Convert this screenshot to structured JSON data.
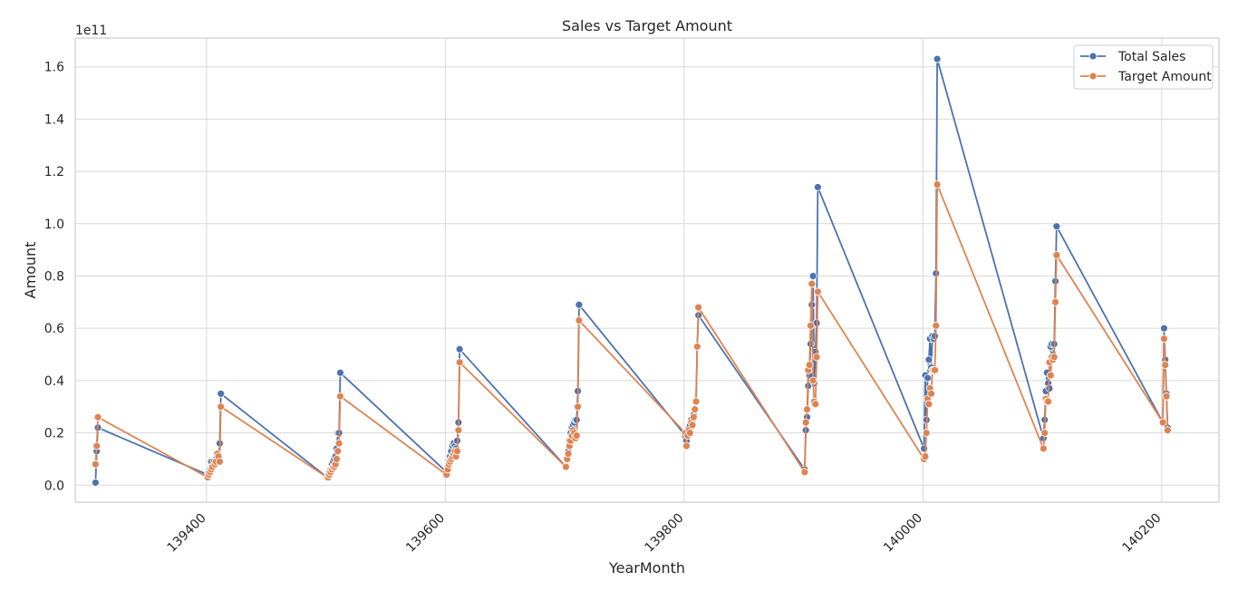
{
  "chart_data": {
    "type": "line",
    "title": "Sales vs Target Amount",
    "xlabel": "YearMonth",
    "ylabel": "Amount",
    "y_scale_label": "1e11",
    "y_multiplier": 100000000000,
    "xlim": [
      139290,
      140248
    ],
    "ylim": [
      -0.065,
      1.71
    ],
    "x_ticks": [
      139400,
      139600,
      139800,
      140000,
      140200
    ],
    "x_tick_labels": [
      "139400",
      "139600",
      "139800",
      "140000",
      "140200"
    ],
    "y_ticks": [
      0.0,
      0.2,
      0.4,
      0.6,
      0.8,
      1.0,
      1.2,
      1.4,
      1.6
    ],
    "y_tick_labels": [
      "0.0",
      "0.2",
      "0.4",
      "0.6",
      "0.8",
      "1.0",
      "1.2",
      "1.4",
      "1.6"
    ],
    "grid": true,
    "legend_position": "top-right",
    "series": [
      {
        "name": "Total Sales",
        "color": "#4c72b0",
        "points": [
          [
            139307,
            0.01
          ],
          [
            139308,
            0.13
          ],
          [
            139309,
            0.22
          ],
          [
            139401,
            0.04
          ],
          [
            139402,
            0.05
          ],
          [
            139403,
            0.06
          ],
          [
            139404,
            0.09
          ],
          [
            139405,
            0.07
          ],
          [
            139406,
            0.08
          ],
          [
            139407,
            0.08
          ],
          [
            139408,
            0.1
          ],
          [
            139409,
            0.09
          ],
          [
            139410,
            0.1
          ],
          [
            139411,
            0.16
          ],
          [
            139412,
            0.35
          ],
          [
            139501,
            0.03
          ],
          [
            139502,
            0.04
          ],
          [
            139503,
            0.05
          ],
          [
            139504,
            0.06
          ],
          [
            139505,
            0.08
          ],
          [
            139506,
            0.09
          ],
          [
            139507,
            0.1
          ],
          [
            139508,
            0.11
          ],
          [
            139509,
            0.14
          ],
          [
            139510,
            0.2
          ],
          [
            139511,
            0.2
          ],
          [
            139512,
            0.43
          ],
          [
            139601,
            0.05
          ],
          [
            139602,
            0.07
          ],
          [
            139603,
            0.09
          ],
          [
            139604,
            0.11
          ],
          [
            139605,
            0.13
          ],
          [
            139606,
            0.15
          ],
          [
            139607,
            0.16
          ],
          [
            139608,
            0.15
          ],
          [
            139609,
            0.14
          ],
          [
            139610,
            0.17
          ],
          [
            139611,
            0.24
          ],
          [
            139612,
            0.52
          ],
          [
            139701,
            0.07
          ],
          [
            139702,
            0.1
          ],
          [
            139703,
            0.13
          ],
          [
            139704,
            0.17
          ],
          [
            139705,
            0.2
          ],
          [
            139706,
            0.22
          ],
          [
            139707,
            0.23
          ],
          [
            139708,
            0.24
          ],
          [
            139709,
            0.25
          ],
          [
            139710,
            0.25
          ],
          [
            139711,
            0.36
          ],
          [
            139712,
            0.69
          ],
          [
            139801,
            0.19
          ],
          [
            139802,
            0.17
          ],
          [
            139803,
            0.2
          ],
          [
            139804,
            0.22
          ],
          [
            139805,
            0.23
          ],
          [
            139806,
            0.25
          ],
          [
            139807,
            0.24
          ],
          [
            139808,
            0.27
          ],
          [
            139809,
            0.29
          ],
          [
            139810,
            0.32
          ],
          [
            139811,
            0.53
          ],
          [
            139812,
            0.65
          ],
          [
            139901,
            0.06
          ],
          [
            139902,
            0.21
          ],
          [
            139903,
            0.26
          ],
          [
            139904,
            0.38
          ],
          [
            139905,
            0.42
          ],
          [
            139906,
            0.54
          ],
          [
            139907,
            0.69
          ],
          [
            139908,
            0.8
          ],
          [
            139909,
            0.39
          ],
          [
            139910,
            0.51
          ],
          [
            139911,
            0.62
          ],
          [
            139912,
            1.14
          ],
          [
            140001,
            0.14
          ],
          [
            140002,
            0.42
          ],
          [
            140003,
            0.25
          ],
          [
            140004,
            0.41
          ],
          [
            140005,
            0.48
          ],
          [
            140006,
            0.56
          ],
          [
            140007,
            0.45
          ],
          [
            140008,
            0.57
          ],
          [
            140009,
            0.56
          ],
          [
            140010,
            0.57
          ],
          [
            140011,
            0.81
          ],
          [
            140012,
            1.63
          ],
          [
            140101,
            0.18
          ],
          [
            140102,
            0.25
          ],
          [
            140103,
            0.36
          ],
          [
            140104,
            0.43
          ],
          [
            140105,
            0.39
          ],
          [
            140106,
            0.37
          ],
          [
            140107,
            0.53
          ],
          [
            140108,
            0.54
          ],
          [
            140109,
            0.5
          ],
          [
            140110,
            0.54
          ],
          [
            140111,
            0.78
          ],
          [
            140112,
            0.99
          ],
          [
            140201,
            0.24
          ],
          [
            140202,
            0.6
          ],
          [
            140203,
            0.48
          ],
          [
            140204,
            0.35
          ],
          [
            140205,
            0.22
          ]
        ]
      },
      {
        "name": "Target Amount",
        "color": "#dd8452",
        "points": [
          [
            139307,
            0.08
          ],
          [
            139308,
            0.15
          ],
          [
            139309,
            0.26
          ],
          [
            139401,
            0.03
          ],
          [
            139402,
            0.04
          ],
          [
            139403,
            0.05
          ],
          [
            139404,
            0.06
          ],
          [
            139405,
            0.07
          ],
          [
            139406,
            0.09
          ],
          [
            139407,
            0.08
          ],
          [
            139408,
            0.09
          ],
          [
            139409,
            0.12
          ],
          [
            139410,
            0.11
          ],
          [
            139411,
            0.09
          ],
          [
            139412,
            0.3
          ],
          [
            139501,
            0.03
          ],
          [
            139502,
            0.03
          ],
          [
            139503,
            0.04
          ],
          [
            139504,
            0.05
          ],
          [
            139505,
            0.06
          ],
          [
            139506,
            0.07
          ],
          [
            139507,
            0.07
          ],
          [
            139508,
            0.08
          ],
          [
            139509,
            0.1
          ],
          [
            139510,
            0.13
          ],
          [
            139511,
            0.16
          ],
          [
            139512,
            0.34
          ],
          [
            139601,
            0.04
          ],
          [
            139602,
            0.06
          ],
          [
            139603,
            0.08
          ],
          [
            139604,
            0.09
          ],
          [
            139605,
            0.1
          ],
          [
            139606,
            0.11
          ],
          [
            139607,
            0.12
          ],
          [
            139608,
            0.13
          ],
          [
            139609,
            0.11
          ],
          [
            139610,
            0.13
          ],
          [
            139611,
            0.21
          ],
          [
            139612,
            0.47
          ],
          [
            139701,
            0.07
          ],
          [
            139702,
            0.1
          ],
          [
            139703,
            0.12
          ],
          [
            139704,
            0.15
          ],
          [
            139705,
            0.17
          ],
          [
            139706,
            0.19
          ],
          [
            139707,
            0.21
          ],
          [
            139708,
            0.2
          ],
          [
            139709,
            0.18
          ],
          [
            139710,
            0.19
          ],
          [
            139711,
            0.3
          ],
          [
            139712,
            0.63
          ],
          [
            139801,
            0.2
          ],
          [
            139802,
            0.15
          ],
          [
            139803,
            0.19
          ],
          [
            139804,
            0.21
          ],
          [
            139805,
            0.2
          ],
          [
            139806,
            0.24
          ],
          [
            139807,
            0.23
          ],
          [
            139808,
            0.26
          ],
          [
            139809,
            0.29
          ],
          [
            139810,
            0.32
          ],
          [
            139811,
            0.53
          ],
          [
            139812,
            0.68
          ],
          [
            139901,
            0.05
          ],
          [
            139902,
            0.24
          ],
          [
            139903,
            0.29
          ],
          [
            139904,
            0.44
          ],
          [
            139905,
            0.46
          ],
          [
            139906,
            0.61
          ],
          [
            139907,
            0.77
          ],
          [
            139908,
            0.4
          ],
          [
            139909,
            0.32
          ],
          [
            139910,
            0.31
          ],
          [
            139911,
            0.49
          ],
          [
            139912,
            0.74
          ],
          [
            140001,
            0.1
          ],
          [
            140002,
            0.11
          ],
          [
            140003,
            0.2
          ],
          [
            140004,
            0.33
          ],
          [
            140005,
            0.31
          ],
          [
            140006,
            0.37
          ],
          [
            140007,
            0.35
          ],
          [
            140008,
            0.44
          ],
          [
            140009,
            0.44
          ],
          [
            140010,
            0.44
          ],
          [
            140011,
            0.61
          ],
          [
            140012,
            1.15
          ],
          [
            140101,
            0.14
          ],
          [
            140102,
            0.2
          ],
          [
            140103,
            0.33
          ],
          [
            140104,
            0.32
          ],
          [
            140105,
            0.32
          ],
          [
            140106,
            0.47
          ],
          [
            140107,
            0.42
          ],
          [
            140108,
            0.49
          ],
          [
            140109,
            0.48
          ],
          [
            140110,
            0.49
          ],
          [
            140111,
            0.7
          ],
          [
            140112,
            0.88
          ],
          [
            140201,
            0.24
          ],
          [
            140202,
            0.56
          ],
          [
            140203,
            0.46
          ],
          [
            140204,
            0.34
          ],
          [
            140205,
            0.21
          ]
        ]
      }
    ]
  }
}
